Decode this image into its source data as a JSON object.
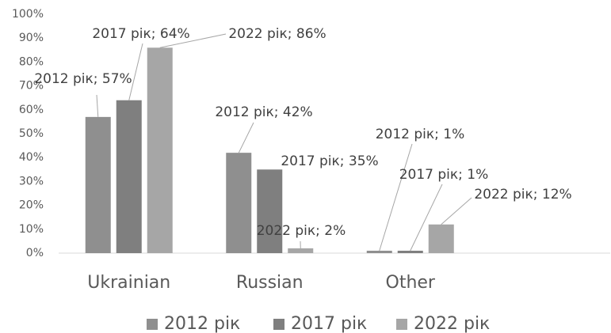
{
  "chart_data": {
    "type": "bar",
    "categories": [
      "Ukrainian",
      "Russian",
      "Other"
    ],
    "series": [
      {
        "name": "2012 рік",
        "color": "#8f8f8f",
        "values": [
          57,
          42,
          1
        ],
        "value_labels": [
          "2012 рік; 57%",
          "2012 рік; 42%",
          "2012 рік; 1%"
        ]
      },
      {
        "name": "2017 рік",
        "color": "#7f7f7f",
        "values": [
          64,
          35,
          1
        ],
        "value_labels": [
          "2017 рік; 64%",
          "2017 рік; 35%",
          "2017 рік; 1%"
        ]
      },
      {
        "name": "2022 рік",
        "color": "#a6a6a6",
        "values": [
          86,
          2,
          12
        ],
        "value_labels": [
          "2022 рік; 86%",
          "2022 рік; 2%",
          "2022 рік; 12%"
        ]
      }
    ],
    "ylim": [
      0,
      100
    ],
    "yticks": [
      {
        "value": 0,
        "label": "0%"
      },
      {
        "value": 10,
        "label": "10%"
      },
      {
        "value": 20,
        "label": "20%"
      },
      {
        "value": 30,
        "label": "30%"
      },
      {
        "value": 40,
        "label": "40%"
      },
      {
        "value": 50,
        "label": "50%"
      },
      {
        "value": 60,
        "label": "60%"
      },
      {
        "value": 70,
        "label": "70%"
      },
      {
        "value": 80,
        "label": "80%"
      },
      {
        "value": 90,
        "label": "90%"
      },
      {
        "value": 100,
        "label": "100%"
      }
    ],
    "legend": "bottom"
  }
}
